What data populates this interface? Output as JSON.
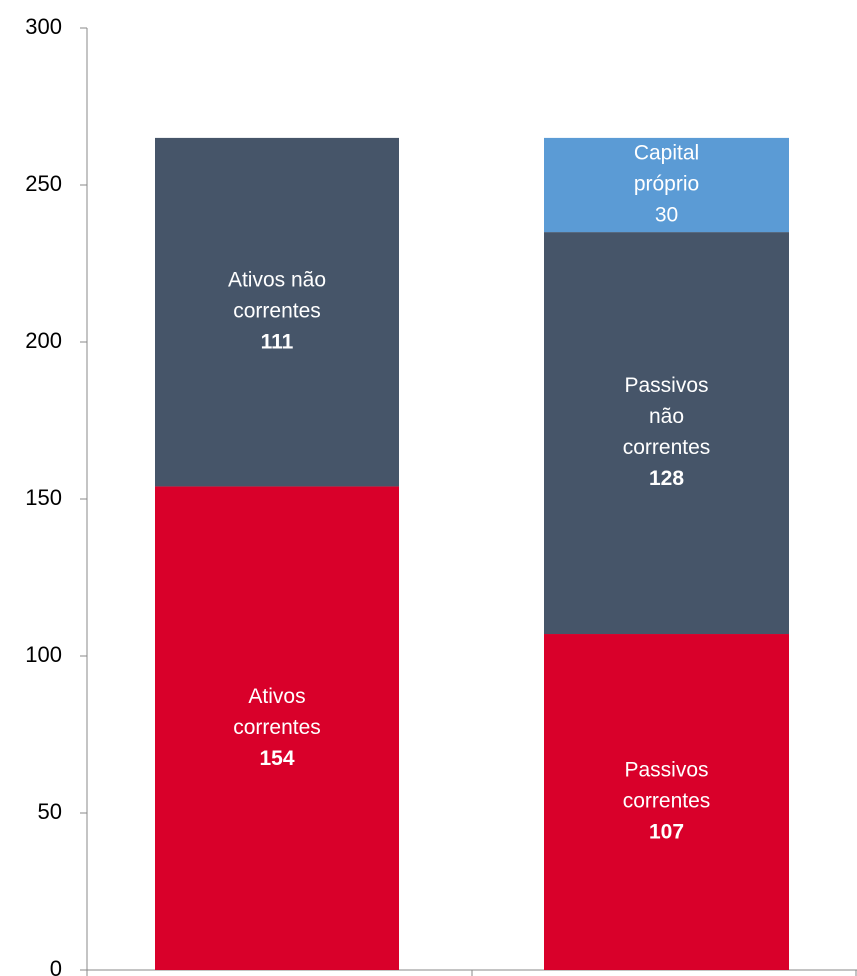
{
  "chart_data": {
    "type": "stacked_bar",
    "categories": [
      null,
      null
    ],
    "stacks": [
      {
        "segments": [
          {
            "label_lines": [
              "Ativos",
              "correntes"
            ],
            "value": 154,
            "color": "#d9002a",
            "value_bold": true
          },
          {
            "label_lines": [
              "Ativos não",
              "correntes"
            ],
            "value": 111,
            "color": "#465569",
            "value_bold": true
          }
        ]
      },
      {
        "segments": [
          {
            "label_lines": [
              "Passivos",
              "correntes"
            ],
            "value": 107,
            "color": "#d9002a",
            "value_bold": true
          },
          {
            "label_lines": [
              "Passivos",
              "não",
              "correntes"
            ],
            "value": 128,
            "color": "#465569",
            "value_bold": true
          },
          {
            "label_lines": [
              "Capital",
              "próprio"
            ],
            "value": 30,
            "color": "#5b9bd5",
            "value_bold": false
          }
        ]
      }
    ],
    "ylim": [
      0,
      300
    ],
    "yticks": [
      0,
      50,
      100,
      150,
      200,
      250,
      300
    ]
  }
}
